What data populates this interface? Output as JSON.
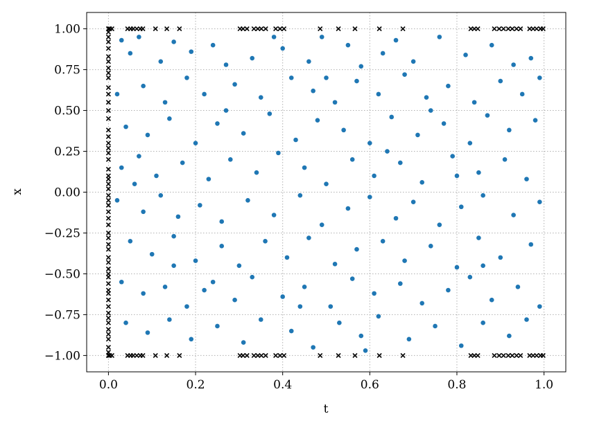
{
  "chart_data": {
    "type": "scatter",
    "title": "",
    "xlabel": "t",
    "ylabel": "x",
    "xlim": [
      -0.05,
      1.05
    ],
    "ylim": [
      -1.1,
      1.1
    ],
    "xticks": [
      0.0,
      0.2,
      0.4,
      0.6,
      0.8,
      1.0
    ],
    "xtick_labels": [
      "0.0",
      "0.2",
      "0.4",
      "0.6",
      "0.8",
      "1.0"
    ],
    "yticks": [
      -1.0,
      -0.75,
      -0.5,
      -0.25,
      0.0,
      0.25,
      0.5,
      0.75,
      1.0
    ],
    "ytick_labels": [
      "−1.00",
      "−0.75",
      "−0.50",
      "−0.25",
      "0.00",
      "0.25",
      "0.50",
      "0.75",
      "1.00"
    ],
    "grid": true,
    "series": [
      {
        "marker": "circle",
        "color": "#1f77b4",
        "points": [
          [
            0.03,
            0.93
          ],
          [
            0.05,
            0.85
          ],
          [
            0.07,
            0.95
          ],
          [
            0.12,
            0.8
          ],
          [
            0.15,
            0.92
          ],
          [
            0.19,
            0.86
          ],
          [
            0.24,
            0.9
          ],
          [
            0.27,
            0.78
          ],
          [
            0.33,
            0.82
          ],
          [
            0.4,
            0.88
          ],
          [
            0.46,
            0.8
          ],
          [
            0.49,
            0.95
          ],
          [
            0.55,
            0.9
          ],
          [
            0.58,
            0.77
          ],
          [
            0.63,
            0.85
          ],
          [
            0.66,
            0.93
          ],
          [
            0.7,
            0.8
          ],
          [
            0.76,
            0.95
          ],
          [
            0.82,
            0.84
          ],
          [
            0.88,
            0.9
          ],
          [
            0.93,
            0.78
          ],
          [
            0.97,
            0.82
          ],
          [
            0.02,
            0.6
          ],
          [
            0.08,
            0.65
          ],
          [
            0.13,
            0.55
          ],
          [
            0.18,
            0.7
          ],
          [
            0.22,
            0.6
          ],
          [
            0.29,
            0.66
          ],
          [
            0.35,
            0.58
          ],
          [
            0.42,
            0.7
          ],
          [
            0.47,
            0.62
          ],
          [
            0.52,
            0.55
          ],
          [
            0.57,
            0.68
          ],
          [
            0.62,
            0.6
          ],
          [
            0.68,
            0.72
          ],
          [
            0.73,
            0.58
          ],
          [
            0.78,
            0.65
          ],
          [
            0.84,
            0.55
          ],
          [
            0.9,
            0.68
          ],
          [
            0.95,
            0.6
          ],
          [
            0.99,
            0.7
          ],
          [
            0.04,
            0.4
          ],
          [
            0.09,
            0.35
          ],
          [
            0.14,
            0.45
          ],
          [
            0.2,
            0.3
          ],
          [
            0.25,
            0.42
          ],
          [
            0.31,
            0.36
          ],
          [
            0.37,
            0.48
          ],
          [
            0.43,
            0.32
          ],
          [
            0.48,
            0.44
          ],
          [
            0.54,
            0.38
          ],
          [
            0.6,
            0.3
          ],
          [
            0.65,
            0.46
          ],
          [
            0.71,
            0.35
          ],
          [
            0.77,
            0.42
          ],
          [
            0.83,
            0.3
          ],
          [
            0.87,
            0.47
          ],
          [
            0.92,
            0.38
          ],
          [
            0.98,
            0.44
          ],
          [
            0.03,
            0.15
          ],
          [
            0.07,
            0.22
          ],
          [
            0.11,
            0.1
          ],
          [
            0.17,
            0.18
          ],
          [
            0.23,
            0.08
          ],
          [
            0.28,
            0.2
          ],
          [
            0.34,
            0.12
          ],
          [
            0.39,
            0.24
          ],
          [
            0.45,
            0.15
          ],
          [
            0.5,
            0.05
          ],
          [
            0.56,
            0.2
          ],
          [
            0.61,
            0.1
          ],
          [
            0.67,
            0.18
          ],
          [
            0.72,
            0.06
          ],
          [
            0.79,
            0.22
          ],
          [
            0.85,
            0.12
          ],
          [
            0.91,
            0.2
          ],
          [
            0.96,
            0.08
          ],
          [
            0.02,
            -0.05
          ],
          [
            0.08,
            -0.12
          ],
          [
            0.12,
            -0.02
          ],
          [
            0.16,
            -0.15
          ],
          [
            0.21,
            -0.08
          ],
          [
            0.26,
            -0.18
          ],
          [
            0.32,
            -0.05
          ],
          [
            0.38,
            -0.14
          ],
          [
            0.44,
            -0.02
          ],
          [
            0.49,
            -0.2
          ],
          [
            0.55,
            -0.1
          ],
          [
            0.6,
            -0.03
          ],
          [
            0.66,
            -0.16
          ],
          [
            0.7,
            -0.06
          ],
          [
            0.76,
            -0.2
          ],
          [
            0.81,
            -0.09
          ],
          [
            0.86,
            -0.02
          ],
          [
            0.93,
            -0.14
          ],
          [
            0.99,
            -0.06
          ],
          [
            0.05,
            -0.3
          ],
          [
            0.1,
            -0.38
          ],
          [
            0.15,
            -0.27
          ],
          [
            0.2,
            -0.42
          ],
          [
            0.26,
            -0.33
          ],
          [
            0.3,
            -0.45
          ],
          [
            0.36,
            -0.3
          ],
          [
            0.41,
            -0.4
          ],
          [
            0.46,
            -0.28
          ],
          [
            0.52,
            -0.44
          ],
          [
            0.57,
            -0.35
          ],
          [
            0.63,
            -0.3
          ],
          [
            0.68,
            -0.42
          ],
          [
            0.74,
            -0.33
          ],
          [
            0.8,
            -0.46
          ],
          [
            0.85,
            -0.28
          ],
          [
            0.9,
            -0.4
          ],
          [
            0.97,
            -0.32
          ],
          [
            0.03,
            -0.55
          ],
          [
            0.08,
            -0.62
          ],
          [
            0.13,
            -0.58
          ],
          [
            0.18,
            -0.7
          ],
          [
            0.24,
            -0.55
          ],
          [
            0.29,
            -0.66
          ],
          [
            0.33,
            -0.52
          ],
          [
            0.4,
            -0.64
          ],
          [
            0.45,
            -0.58
          ],
          [
            0.51,
            -0.7
          ],
          [
            0.56,
            -0.53
          ],
          [
            0.61,
            -0.62
          ],
          [
            0.67,
            -0.56
          ],
          [
            0.72,
            -0.68
          ],
          [
            0.78,
            -0.6
          ],
          [
            0.83,
            -0.52
          ],
          [
            0.88,
            -0.66
          ],
          [
            0.94,
            -0.58
          ],
          [
            0.99,
            -0.7
          ],
          [
            0.04,
            -0.8
          ],
          [
            0.09,
            -0.86
          ],
          [
            0.14,
            -0.78
          ],
          [
            0.19,
            -0.9
          ],
          [
            0.25,
            -0.82
          ],
          [
            0.31,
            -0.92
          ],
          [
            0.35,
            -0.78
          ],
          [
            0.42,
            -0.85
          ],
          [
            0.47,
            -0.95
          ],
          [
            0.53,
            -0.8
          ],
          [
            0.58,
            -0.88
          ],
          [
            0.62,
            -0.76
          ],
          [
            0.69,
            -0.9
          ],
          [
            0.75,
            -0.82
          ],
          [
            0.81,
            -0.94
          ],
          [
            0.86,
            -0.8
          ],
          [
            0.92,
            -0.88
          ],
          [
            0.96,
            -0.78
          ],
          [
            0.06,
            0.05
          ],
          [
            0.27,
            0.5
          ],
          [
            0.44,
            -0.7
          ],
          [
            0.64,
            0.25
          ],
          [
            0.86,
            -0.45
          ],
          [
            0.38,
            0.95
          ],
          [
            0.59,
            -0.97
          ],
          [
            0.15,
            -0.45
          ],
          [
            0.74,
            0.5
          ],
          [
            0.5,
            0.7
          ],
          [
            0.22,
            -0.6
          ],
          [
            0.8,
            0.1
          ]
        ]
      },
      {
        "marker": "x",
        "color": "#000000",
        "points_boundary_t": [
          0.0,
          0.003,
          0.008,
          0.044,
          0.051,
          0.057,
          0.065,
          0.073,
          0.079,
          0.108,
          0.134,
          0.163,
          0.302,
          0.309,
          0.318,
          0.334,
          0.343,
          0.351,
          0.361,
          0.384,
          0.394,
          0.403,
          0.486,
          0.528,
          0.566,
          0.622,
          0.676,
          0.832,
          0.84,
          0.848,
          0.886,
          0.897,
          0.907,
          0.918,
          0.927,
          0.937,
          0.946,
          0.967,
          0.975,
          0.983,
          0.992,
          0.998
        ],
        "points_initial_x": [
          -1.0,
          -0.98,
          -0.95,
          -0.9,
          -0.87,
          -0.84,
          -0.8,
          -0.77,
          -0.74,
          -0.7,
          -0.66,
          -0.62,
          -0.6,
          -0.56,
          -0.52,
          -0.5,
          -0.47,
          -0.43,
          -0.4,
          -0.35,
          -0.32,
          -0.28,
          -0.25,
          -0.2,
          -0.16,
          -0.12,
          -0.08,
          -0.05,
          -0.02,
          0.02,
          0.05,
          0.08,
          0.1,
          0.14,
          0.2,
          0.24,
          0.27,
          0.3,
          0.34,
          0.38,
          0.45,
          0.5,
          0.55,
          0.6,
          0.64,
          0.7,
          0.73,
          0.76,
          0.8,
          0.83,
          0.88,
          0.92,
          0.95,
          0.98,
          1.0
        ]
      }
    ]
  }
}
